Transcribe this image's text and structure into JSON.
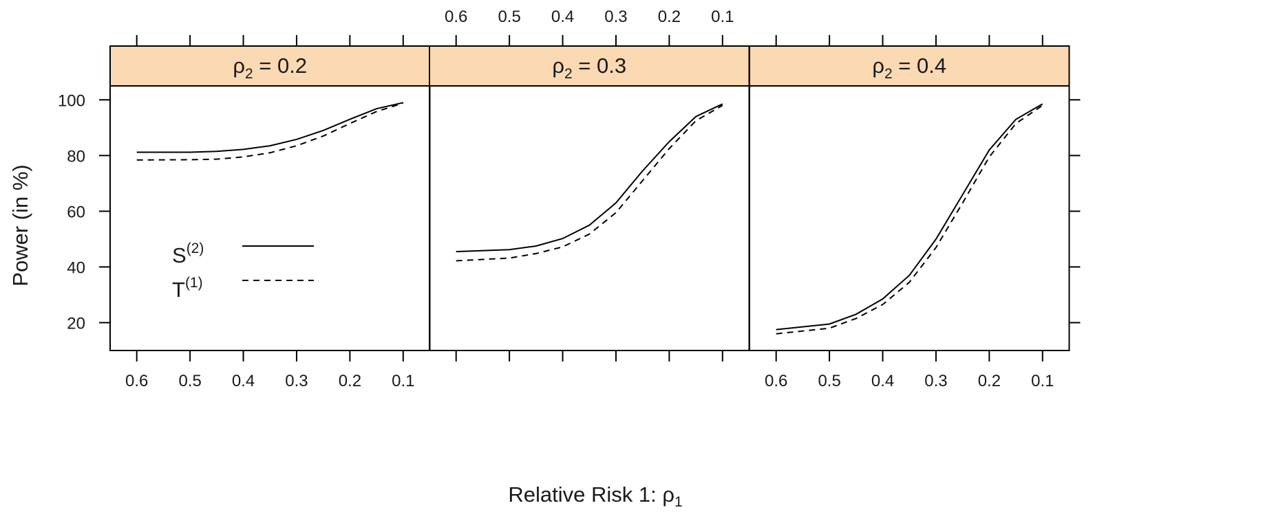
{
  "chart_data": {
    "type": "line",
    "panel_variable": "ρ",
    "panel_variable_subscript": "2",
    "panels": [
      {
        "value": "0.2",
        "x": [
          0.6,
          0.5,
          0.45,
          0.4,
          0.35,
          0.3,
          0.25,
          0.2,
          0.15,
          0.1
        ],
        "series": [
          {
            "name": "S(2)",
            "values": [
              81.2,
              81.2,
              81.5,
              82.2,
              83.5,
              85.8,
              89.0,
              93.0,
              96.8,
              99.0
            ]
          },
          {
            "name": "T(1)",
            "values": [
              78.4,
              78.5,
              78.7,
              79.5,
              81.0,
              83.5,
              87.0,
              91.5,
              95.8,
              98.8
            ]
          }
        ]
      },
      {
        "value": "0.3",
        "x": [
          0.6,
          0.5,
          0.45,
          0.4,
          0.35,
          0.3,
          0.25,
          0.2,
          0.15,
          0.1
        ],
        "series": [
          {
            "name": "S(2)",
            "values": [
              45.5,
              46.2,
              47.5,
              50.2,
              55.0,
              63.0,
              74.5,
              85.0,
              94.0,
              98.5
            ]
          },
          {
            "name": "T(1)",
            "values": [
              42.2,
              43.2,
              44.8,
              47.2,
              51.8,
              59.5,
              71.0,
              82.5,
              92.5,
              98.0
            ]
          }
        ]
      },
      {
        "value": "0.4",
        "x": [
          0.6,
          0.5,
          0.45,
          0.4,
          0.35,
          0.3,
          0.25,
          0.2,
          0.15,
          0.1
        ],
        "series": [
          {
            "name": "S(2)",
            "values": [
              17.5,
              19.5,
              23.0,
              28.5,
              37.0,
              50.0,
              66.0,
              82.0,
              93.0,
              98.5
            ]
          },
          {
            "name": "T(1)",
            "values": [
              16.0,
              18.0,
              21.5,
              26.5,
              34.5,
              47.0,
              63.0,
              79.5,
              91.5,
              98.0
            ]
          }
        ]
      }
    ],
    "x_ticks": [
      0.6,
      0.5,
      0.4,
      0.3,
      0.2,
      0.1
    ],
    "x_tick_labels": [
      "0.6",
      "0.5",
      "0.4",
      "0.3",
      "0.2",
      "0.1"
    ],
    "xlim": [
      0.65,
      0.05
    ],
    "y_ticks": [
      20,
      40,
      60,
      80,
      100
    ],
    "y_tick_labels": [
      "20",
      "40",
      "60",
      "80",
      "100"
    ],
    "ylim": [
      10,
      105
    ],
    "xlabel": "Relative Risk 1: ",
    "xlabel_symbol": "ρ",
    "xlabel_subscript": "1",
    "ylabel": "Power (in %)",
    "legend": {
      "placement": "inside first panel, lower-left",
      "entries": [
        {
          "base": "S",
          "superscript": "(2)",
          "line": "solid"
        },
        {
          "base": "T",
          "superscript": "(1)",
          "line": "dashed"
        }
      ]
    },
    "grid": false,
    "strip_color": "#fbd9b2",
    "line_color": "#000000",
    "x_label_positions": {
      "bottom": [
        0,
        2
      ],
      "top": [
        1
      ]
    }
  }
}
